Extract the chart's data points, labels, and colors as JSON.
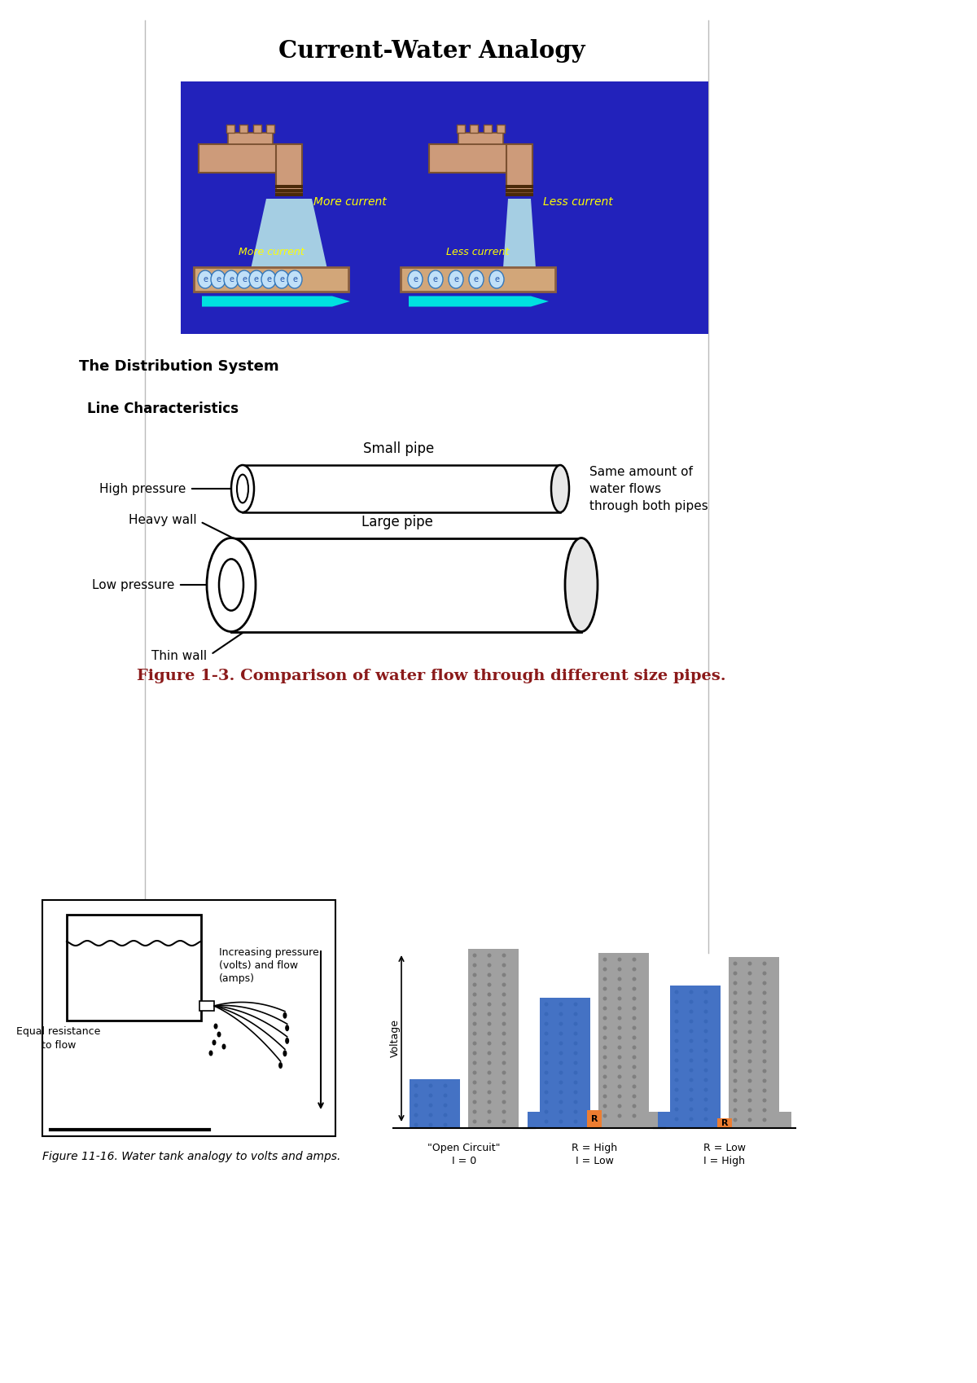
{
  "title": "Current-Water Analogy",
  "bg_color": "#ffffff",
  "blue_bg": "#2222bb",
  "faucet_color": "#cd9b7a",
  "water_color": "#add8e6",
  "arrow_color": "#00e0e0",
  "text_yellow": "#ffff00",
  "text_black": "#000000",
  "pipe_color": "#d2a679",
  "section2_title": "The Distribution System",
  "section2_sub": "Line Characteristics",
  "fig1_caption": "Figure 1-3. Comparison of water flow through different size pipes.",
  "fig2_caption": "Figure 11-16. Water tank analogy to volts and amps.",
  "small_pipe_label": "Small pipe",
  "large_pipe_label": "Large pipe",
  "high_pressure_label": "High pressure",
  "low_pressure_label": "Low pressure",
  "heavy_wall_label": "Heavy wall",
  "thin_wall_label": "Thin wall",
  "same_amount_text": "Same amount of\nwater flows\nthrough both pipes",
  "more_current_top": "More current",
  "less_current_top": "Less current",
  "more_current_bot": "More current",
  "less_current_bot": "Less current",
  "open_circuit_label": "\"Open Circuit\"\nI = 0",
  "r_high_label": "R = High\nI = Low",
  "r_low_label": "R = Low\nI = High",
  "voltage_label": "Voltage",
  "r_label": "R",
  "equal_resistance_label": "Equal resistance\nto flow",
  "increasing_pressure_label": "Increasing pressure\n(volts) and flow\n(amps)"
}
